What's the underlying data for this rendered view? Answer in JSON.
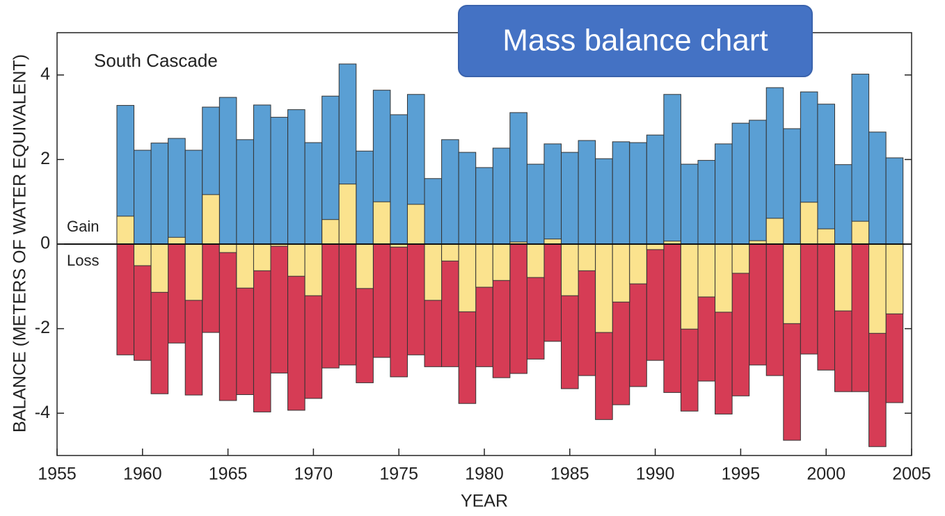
{
  "chart_data": {
    "type": "bar",
    "annotation": "Mass balance chart",
    "title": "South Cascade",
    "gain_label": "Gain",
    "loss_label": "Loss",
    "xlabel": "YEAR",
    "ylabel": "BALANCE (METERS OF WATER EQUIVALENT)",
    "x": [
      1959,
      1960,
      1961,
      1962,
      1963,
      1964,
      1965,
      1966,
      1967,
      1968,
      1969,
      1970,
      1971,
      1972,
      1973,
      1974,
      1975,
      1976,
      1977,
      1978,
      1979,
      1980,
      1981,
      1982,
      1983,
      1984,
      1985,
      1986,
      1987,
      1988,
      1989,
      1990,
      1991,
      1992,
      1993,
      1994,
      1995,
      1996,
      1997,
      1998,
      1999,
      2000,
      2001,
      2002,
      2003,
      2004
    ],
    "series": [
      {
        "color": "#5a9fd4",
        "values": [
          3.28,
          2.22,
          2.39,
          2.5,
          2.22,
          3.24,
          3.47,
          2.47,
          3.29,
          3.0,
          3.18,
          2.4,
          3.5,
          4.26,
          2.2,
          3.64,
          3.06,
          3.54,
          1.55,
          2.47,
          2.17,
          1.81,
          2.27,
          3.11,
          1.89,
          2.37,
          2.17,
          2.45,
          2.02,
          2.42,
          2.4,
          2.58,
          3.54,
          1.89,
          1.98,
          2.37,
          2.86,
          2.93,
          3.7,
          2.73,
          3.6,
          3.31,
          1.88,
          4.02,
          2.65,
          2.04
        ]
      },
      {
        "color": "#d63c55",
        "values": [
          -2.62,
          -2.75,
          -3.54,
          -2.34,
          -3.57,
          -2.09,
          -3.7,
          -3.56,
          -3.97,
          -3.05,
          -3.93,
          -3.65,
          -2.93,
          -2.86,
          -3.28,
          -2.68,
          -3.14,
          -2.62,
          -2.9,
          -2.9,
          -3.77,
          -2.9,
          -3.16,
          -3.06,
          -2.72,
          -2.3,
          -3.42,
          -3.11,
          -4.15,
          -3.8,
          -3.37,
          -2.75,
          -3.51,
          -3.95,
          -3.24,
          -4.02,
          -3.59,
          -2.86,
          -3.11,
          -4.64,
          -2.6,
          -2.98,
          -3.49,
          -3.49,
          -4.79,
          -3.75
        ]
      },
      {
        "color": "#fbe38e",
        "values": [
          0.66,
          -0.51,
          -1.14,
          0.16,
          -1.33,
          1.17,
          -0.2,
          -1.04,
          -0.63,
          -0.05,
          -0.76,
          -1.22,
          0.58,
          1.42,
          -1.05,
          1.0,
          -0.07,
          0.94,
          -1.33,
          -0.4,
          -1.6,
          -1.02,
          -0.86,
          0.05,
          -0.79,
          0.12,
          -1.22,
          -0.63,
          -2.09,
          -1.37,
          -0.94,
          -0.13,
          0.07,
          -2.01,
          -1.25,
          -1.61,
          -0.69,
          0.08,
          0.61,
          -1.88,
          0.99,
          0.36,
          -1.58,
          0.54,
          -2.11,
          -1.65
        ]
      }
    ],
    "xlim": [
      1955,
      2005
    ],
    "xticks": [
      1955,
      1960,
      1965,
      1970,
      1975,
      1980,
      1985,
      1990,
      1995,
      2000,
      2005
    ],
    "ylim": [
      -5,
      5
    ],
    "yticks": [
      -4,
      -2,
      0,
      2,
      4
    ]
  }
}
